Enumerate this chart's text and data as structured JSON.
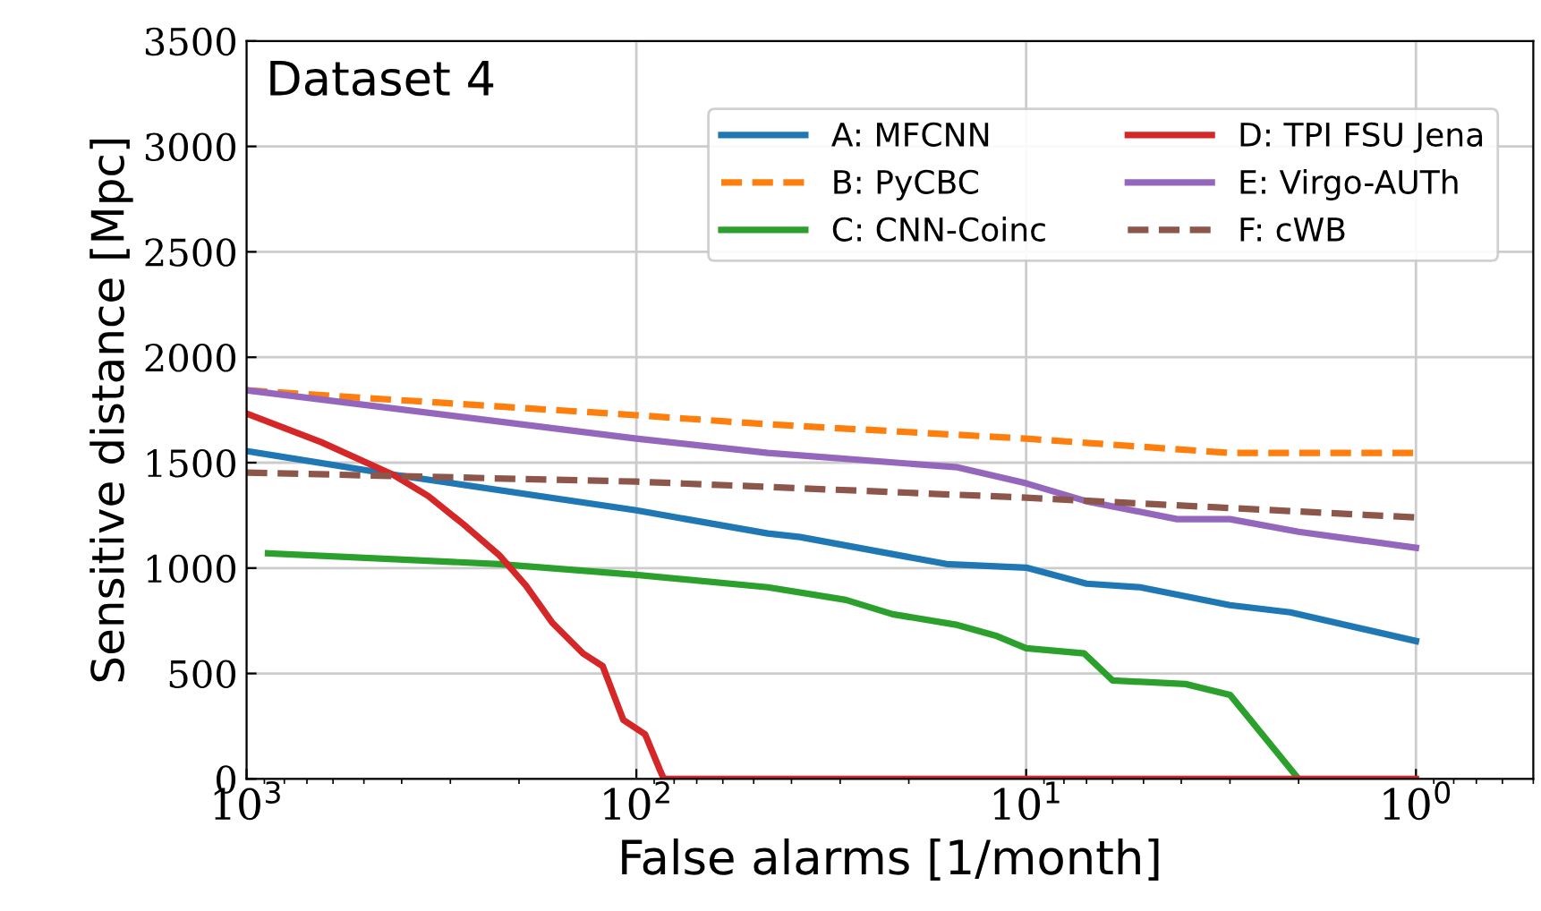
{
  "chart_data": {
    "type": "line",
    "title": "Dataset 4",
    "xlabel": "False alarms [1/month]",
    "ylabel": "Sensitive distance [Mpc]",
    "log": "x",
    "xlim": [
      1000,
      0.5
    ],
    "xticks": [
      {
        "value": 1000,
        "label": "10$^{3}$"
      },
      {
        "value": 100,
        "label": "10$^{2}$"
      },
      {
        "value": 10,
        "label": "10$^{1}$"
      },
      {
        "value": 1,
        "label": "10$^{0}$"
      }
    ],
    "ylim": [
      0,
      3500
    ],
    "yticks": [
      0,
      500,
      1000,
      1500,
      2000,
      2500,
      3000,
      3500
    ],
    "grid": true,
    "legend": "top right",
    "series": [
      {
        "name": "A: MFCNN",
        "color": "#1f77b4",
        "line_style": "solid",
        "x": [
          1000,
          422,
          100,
          46,
          38,
          16,
          10,
          7.0,
          5.1,
          3.0,
          2.1,
          1
        ],
        "values": [
          1555,
          1444,
          1274,
          1164,
          1147,
          1019,
          1002,
          926,
          909,
          824,
          790,
          654
        ]
      },
      {
        "name": "B: PyCBC",
        "color": "#ff7f0e",
        "line_style": "dashed",
        "x": [
          1000,
          100,
          46,
          10,
          3.0,
          1
        ],
        "values": [
          1843,
          1725,
          1682,
          1614,
          1546,
          1546
        ]
      },
      {
        "name": "C: CNN-Coinc",
        "color": "#2ca02c",
        "line_style": "solid",
        "x": [
          881,
          225,
          100,
          46,
          29,
          22,
          15,
          12,
          10,
          7.1,
          6.0,
          3.9,
          3.0,
          2.0
        ],
        "values": [
          1070,
          1019,
          968,
          909,
          849,
          781,
          730,
          680,
          620,
          595,
          467,
          450,
          399,
          0
        ]
      },
      {
        "name": "D: TPI FSU Jena",
        "color": "#d62728",
        "line_style": "solid",
        "x": [
          1000,
          643,
          422,
          342,
          277,
          225,
          192,
          164,
          137,
          122,
          108,
          95,
          87,
          85,
          1
        ],
        "values": [
          1733,
          1597,
          1444,
          1342,
          1206,
          1062,
          917,
          739,
          595,
          535,
          280,
          212,
          42,
          0,
          0
        ]
      },
      {
        "name": "E: Virgo-AUTh",
        "color": "#9467bd",
        "line_style": "solid",
        "x": [
          1000,
          100,
          46,
          15,
          10,
          7.0,
          4.1,
          3.0,
          2.0,
          1
        ],
        "values": [
          1843,
          1614,
          1546,
          1478,
          1402,
          1317,
          1232,
          1232,
          1172,
          1096
        ]
      },
      {
        "name": "F: cWB",
        "color": "#8c564b",
        "line_style": "dashed",
        "x": [
          1000,
          100,
          46,
          10,
          1
        ],
        "values": [
          1453,
          1410,
          1385,
          1334,
          1240
        ]
      }
    ]
  }
}
